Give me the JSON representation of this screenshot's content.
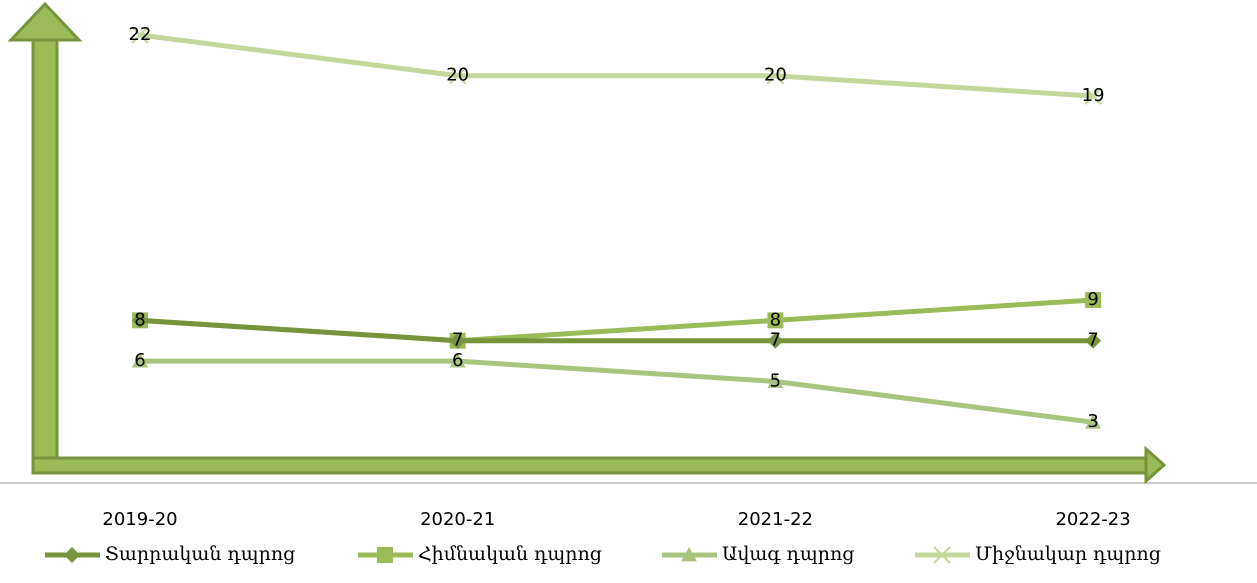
{
  "chart_data": {
    "type": "line",
    "categories": [
      "2019-20",
      "2020-21",
      "2021-22",
      "2022-23"
    ],
    "series": [
      {
        "name": "Տարրական դպրոց",
        "color": "#77933c",
        "marker": "diamond",
        "values": [
          8,
          7,
          7,
          7
        ]
      },
      {
        "name": "Հիմնական դպրոց",
        "color": "#9bbb59",
        "marker": "square",
        "values": [
          8,
          7,
          8,
          9
        ]
      },
      {
        "name": "Ավագ դպրոց",
        "color": "#a9c47f",
        "marker": "triangle",
        "values": [
          6,
          6,
          5,
          3
        ]
      },
      {
        "name": "Միջնակար դպրոց",
        "color": "#c3d69b",
        "marker": "x",
        "values": [
          22,
          20,
          20,
          19
        ]
      }
    ],
    "ylim": [
      1,
      23
    ],
    "legend": "bottom"
  }
}
